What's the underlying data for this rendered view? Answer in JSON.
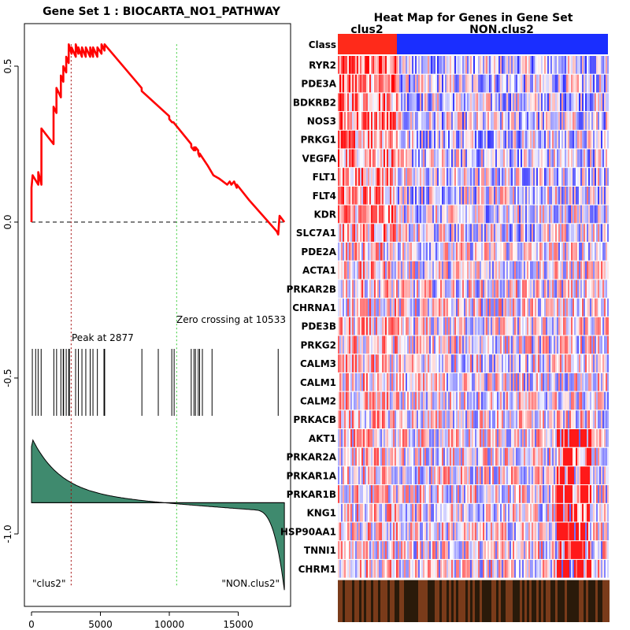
{
  "chart_data": [
    {
      "type": "line",
      "title": "Gene Set  1 : BIOCARTA_NO1_PATHWAY",
      "xlabel": "",
      "ylabel": "",
      "xlim": [
        0,
        18500
      ],
      "ylim": [
        -1.25,
        0.65
      ],
      "x_ticks": [
        0,
        5000,
        10000,
        15000
      ],
      "x_tick_labels": [
        "0",
        "5000",
        "10000",
        "15000"
      ],
      "y_ticks": [
        0.5,
        0.0,
        -0.5,
        -1.0
      ],
      "y_tick_labels": [
        "0.5",
        "0.0",
        "-0.5",
        "-1.0"
      ],
      "running_es": {
        "x": [
          0,
          1,
          80,
          490,
          491,
          719,
          720,
          1599,
          1600,
          1809,
          1810,
          2129,
          2130,
          2309,
          2310,
          2519,
          2520,
          2699,
          2700,
          2909,
          2910,
          3209,
          3210,
          3399,
          3400,
          3659,
          3660,
          3939,
          3940,
          4259,
          4260,
          4469,
          4470,
          4779,
          4780,
          5079,
          5080,
          5299,
          5300,
          7990,
          8000,
          9990,
          10000,
          10200,
          10300,
          11590,
          11600,
          11790,
          11800,
          11890,
          11900,
          12090,
          12100,
          12190,
          12200,
          12800,
          13200,
          13600,
          14200,
          14380,
          14500,
          14700,
          14890,
          14900,
          15800,
          17800,
          17900,
          18000,
          18350
        ],
        "y": [
          0.0,
          0.11,
          0.15,
          0.12,
          0.16,
          0.12,
          0.3,
          0.25,
          0.37,
          0.35,
          0.43,
          0.4,
          0.47,
          0.45,
          0.5,
          0.48,
          0.53,
          0.51,
          0.57,
          0.54,
          0.56,
          0.53,
          0.57,
          0.54,
          0.56,
          0.53,
          0.56,
          0.53,
          0.56,
          0.53,
          0.56,
          0.53,
          0.56,
          0.53,
          0.56,
          0.54,
          0.57,
          0.55,
          0.57,
          0.43,
          0.42,
          0.34,
          0.33,
          0.32,
          0.32,
          0.25,
          0.24,
          0.23,
          0.24,
          0.23,
          0.24,
          0.23,
          0.22,
          0.21,
          0.22,
          0.18,
          0.15,
          0.14,
          0.12,
          0.13,
          0.12,
          0.13,
          0.11,
          0.12,
          0.07,
          -0.03,
          -0.04,
          0.02,
          0.0
        ]
      },
      "baseline_y": 0.0,
      "peak_x": 2877,
      "zero_crossing_x": 10533,
      "annotations": [
        "Peak at 2877",
        "Zero crossing at 10533"
      ],
      "hits": [
        60,
        300,
        480,
        700,
        1620,
        1820,
        2130,
        2300,
        2330,
        2520,
        2700,
        2750,
        3200,
        3400,
        3660,
        3940,
        4260,
        4460,
        4780,
        5260,
        5310,
        8010,
        9200,
        10180,
        10350,
        11590,
        11790,
        11900,
        12100,
        12200,
        12400,
        13100,
        17900
      ],
      "rank_metric": {
        "baseline_y": -0.9,
        "start_y": -0.72,
        "end_y": -1.15
      },
      "phenotype_labels": [
        "\"clus2\"",
        "\"NON.clus2\""
      ]
    },
    {
      "type": "heatmap",
      "title": "Heat Map for Genes in Gene Set",
      "class_label": "Class",
      "classes": [
        "clus2",
        "NON.clus2"
      ],
      "class_colors": [
        "#ff2a1a",
        "#1a2eff"
      ],
      "genes": [
        "RYR2",
        "PDE3A",
        "BDKRB2",
        "NOS3",
        "PRKG1",
        "VEGFA",
        "FLT1",
        "FLT4",
        "KDR",
        "SLC7A1",
        "PDE2A",
        "ACTA1",
        "PRKAR2B",
        "CHRNA1",
        "PDE3B",
        "PRKG2",
        "CALM3",
        "CALM1",
        "CALM2",
        "PRKACB",
        "AKT1",
        "PRKAR2A",
        "PRKAR1A",
        "PRKAR1B",
        "KNG1",
        "HSP90AA1",
        "TNNI1",
        "CHRM1"
      ]
    }
  ],
  "colors": {
    "es_line": "#ff0000",
    "peak_line": "#a00000",
    "zero_line": "#33cc33",
    "metric_fill": "#3f8a6e",
    "high": "#ff0000",
    "low": "#0000ff",
    "mid": "#ffffff"
  }
}
